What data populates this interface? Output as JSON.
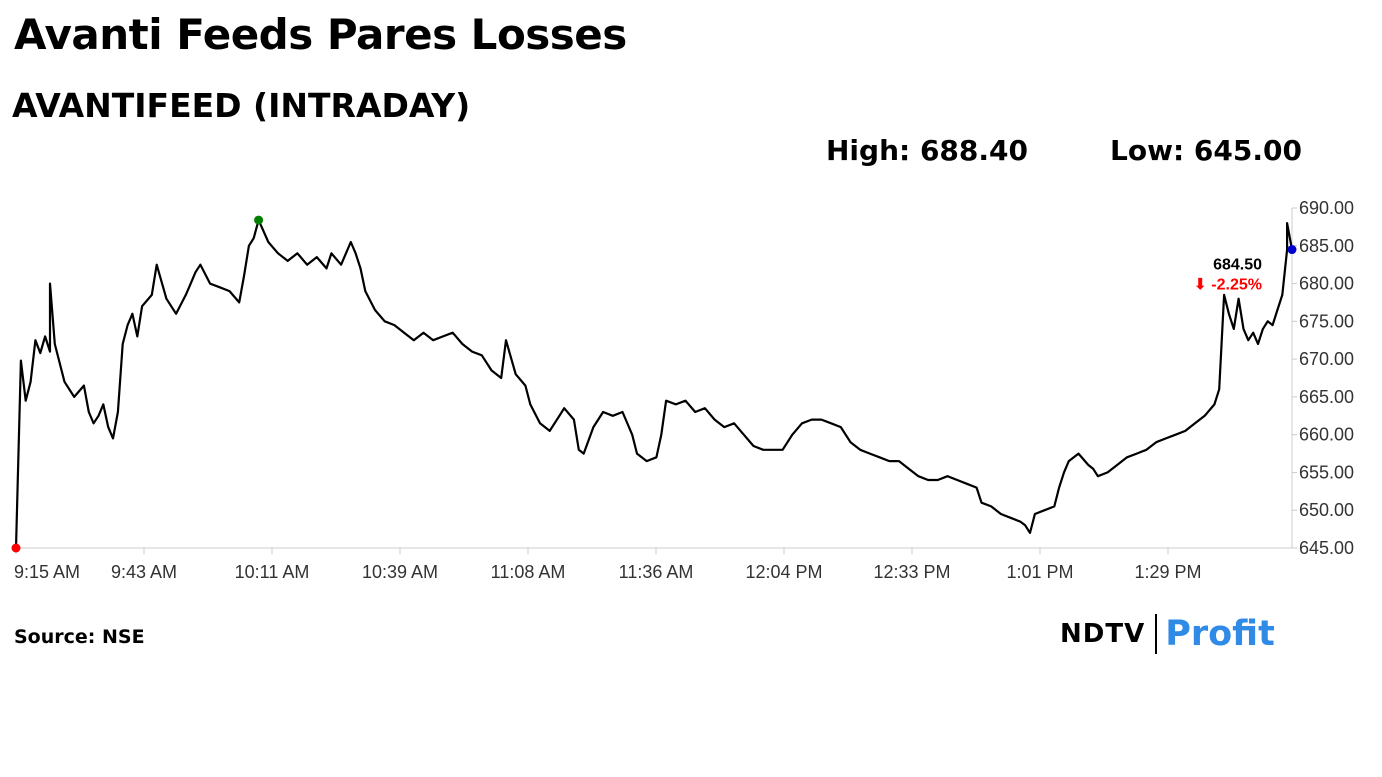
{
  "title": "Avanti Feeds Pares Losses",
  "subtitle": "AVANTIFEED (INTRADAY)",
  "stats": {
    "high": "High: 688.40",
    "low": "Low: 645.00"
  },
  "source": "Source: NSE",
  "brand": {
    "ndtv": "NDTV",
    "profit": "Profit",
    "accent": "#2f8be6"
  },
  "chart_data": {
    "type": "line",
    "title": "AVANTIFEED (INTRADAY)",
    "xlabel": "",
    "ylabel": "",
    "ylim": [
      645,
      690
    ],
    "yticks": [
      "690.00",
      "685.00",
      "680.00",
      "675.00",
      "670.00",
      "665.00",
      "660.00",
      "655.00",
      "650.00",
      "645.00"
    ],
    "xticks": [
      "9:15 AM",
      "9:43 AM",
      "10:11 AM",
      "10:39 AM",
      "11:08 AM",
      "11:36 AM",
      "12:04 PM",
      "12:33 PM",
      "1:01 PM",
      "1:29 PM"
    ],
    "grid": false,
    "series": [
      {
        "color": "#000000",
        "points": [
          [
            "9:15",
            645.0
          ],
          [
            "9:16",
            669.8
          ],
          [
            "9:17",
            664.5
          ],
          [
            "9:18",
            667.0
          ],
          [
            "9:19",
            672.5
          ],
          [
            "9:20",
            670.8
          ],
          [
            "9:21",
            673.0
          ],
          [
            "9:22",
            671.0
          ],
          [
            "9:22",
            680.0
          ],
          [
            "9:23",
            672.0
          ],
          [
            "9:25",
            667.0
          ],
          [
            "9:27",
            665.0
          ],
          [
            "9:29",
            666.5
          ],
          [
            "9:30",
            663.0
          ],
          [
            "9:31",
            661.5
          ],
          [
            "9:32",
            662.5
          ],
          [
            "9:33",
            664.0
          ],
          [
            "9:34",
            661.0
          ],
          [
            "9:35",
            659.5
          ],
          [
            "9:36",
            663.0
          ],
          [
            "9:37",
            672.0
          ],
          [
            "9:38",
            674.5
          ],
          [
            "9:39",
            676.0
          ],
          [
            "9:40",
            673.0
          ],
          [
            "9:41",
            677.0
          ],
          [
            "9:43",
            678.5
          ],
          [
            "9:44",
            682.5
          ],
          [
            "9:46",
            678.0
          ],
          [
            "9:48",
            676.0
          ],
          [
            "9:50",
            678.5
          ],
          [
            "9:51",
            680.0
          ],
          [
            "9:52",
            681.5
          ],
          [
            "9:53",
            682.5
          ],
          [
            "9:55",
            680.0
          ],
          [
            "9:57",
            679.5
          ],
          [
            "9:59",
            679.0
          ],
          [
            "10:01",
            677.5
          ],
          [
            "10:02",
            681.0
          ],
          [
            "10:03",
            685.0
          ],
          [
            "10:04",
            686.0
          ],
          [
            "10:05",
            688.4
          ],
          [
            "10:07",
            685.5
          ],
          [
            "10:09",
            684.0
          ],
          [
            "10:11",
            683.0
          ],
          [
            "10:13",
            684.0
          ],
          [
            "10:15",
            682.5
          ],
          [
            "10:17",
            683.5
          ],
          [
            "10:19",
            682.0
          ],
          [
            "10:20",
            684.0
          ],
          [
            "10:22",
            682.5
          ],
          [
            "10:24",
            685.5
          ],
          [
            "10:25",
            684.0
          ],
          [
            "10:26",
            682.0
          ],
          [
            "10:27",
            679.0
          ],
          [
            "10:29",
            676.5
          ],
          [
            "10:31",
            675.0
          ],
          [
            "10:33",
            674.5
          ],
          [
            "10:35",
            673.5
          ],
          [
            "10:37",
            672.5
          ],
          [
            "10:39",
            673.5
          ],
          [
            "10:41",
            672.5
          ],
          [
            "10:43",
            673.0
          ],
          [
            "10:45",
            673.5
          ],
          [
            "10:47",
            672.0
          ],
          [
            "10:49",
            671.0
          ],
          [
            "10:51",
            670.5
          ],
          [
            "10:53",
            668.5
          ],
          [
            "10:55",
            667.5
          ],
          [
            "10:56",
            672.5
          ],
          [
            "10:58",
            668.0
          ],
          [
            "11:00",
            666.5
          ],
          [
            "11:01",
            664.0
          ],
          [
            "11:03",
            661.5
          ],
          [
            "11:05",
            660.5
          ],
          [
            "11:07",
            662.5
          ],
          [
            "11:08",
            663.5
          ],
          [
            "11:10",
            662.0
          ],
          [
            "11:11",
            658.0
          ],
          [
            "11:12",
            657.5
          ],
          [
            "11:14",
            661.0
          ],
          [
            "11:16",
            663.0
          ],
          [
            "11:18",
            662.5
          ],
          [
            "11:20",
            663.0
          ],
          [
            "11:22",
            660.0
          ],
          [
            "11:23",
            657.5
          ],
          [
            "11:25",
            656.5
          ],
          [
            "11:27",
            657.0
          ],
          [
            "11:28",
            660.0
          ],
          [
            "11:29",
            664.5
          ],
          [
            "11:31",
            664.0
          ],
          [
            "11:33",
            664.5
          ],
          [
            "11:35",
            663.0
          ],
          [
            "11:37",
            663.5
          ],
          [
            "11:39",
            662.0
          ],
          [
            "11:41",
            661.0
          ],
          [
            "11:43",
            661.5
          ],
          [
            "11:45",
            660.0
          ],
          [
            "11:47",
            658.5
          ],
          [
            "11:49",
            658.0
          ],
          [
            "11:51",
            658.0
          ],
          [
            "11:53",
            658.0
          ],
          [
            "11:55",
            660.0
          ],
          [
            "11:57",
            661.5
          ],
          [
            "11:59",
            662.0
          ],
          [
            "12:01",
            662.0
          ],
          [
            "12:03",
            661.5
          ],
          [
            "12:05",
            661.0
          ],
          [
            "12:07",
            659.0
          ],
          [
            "12:09",
            658.0
          ],
          [
            "12:11",
            657.5
          ],
          [
            "12:13",
            657.0
          ],
          [
            "12:15",
            656.5
          ],
          [
            "12:17",
            656.5
          ],
          [
            "12:19",
            655.5
          ],
          [
            "12:21",
            654.5
          ],
          [
            "12:23",
            654.0
          ],
          [
            "12:25",
            654.0
          ],
          [
            "12:27",
            654.5
          ],
          [
            "12:29",
            654.0
          ],
          [
            "12:31",
            653.5
          ],
          [
            "12:33",
            653.0
          ],
          [
            "12:34",
            651.0
          ],
          [
            "12:36",
            650.5
          ],
          [
            "12:38",
            649.5
          ],
          [
            "12:40",
            649.0
          ],
          [
            "12:42",
            648.5
          ],
          [
            "12:43",
            648.0
          ],
          [
            "12:44",
            647.0
          ],
          [
            "12:45",
            649.5
          ],
          [
            "12:47",
            650.0
          ],
          [
            "12:49",
            650.5
          ],
          [
            "12:50",
            653.0
          ],
          [
            "12:51",
            655.0
          ],
          [
            "12:52",
            656.5
          ],
          [
            "12:54",
            657.5
          ],
          [
            "12:56",
            656.0
          ],
          [
            "12:57",
            655.5
          ],
          [
            "12:58",
            654.5
          ],
          [
            "13:00",
            655.0
          ],
          [
            "13:02",
            656.0
          ],
          [
            "13:04",
            657.0
          ],
          [
            "13:06",
            657.5
          ],
          [
            "13:08",
            658.0
          ],
          [
            "13:10",
            659.0
          ],
          [
            "13:12",
            659.5
          ],
          [
            "13:14",
            660.0
          ],
          [
            "13:16",
            660.5
          ],
          [
            "13:18",
            661.5
          ],
          [
            "13:20",
            662.5
          ],
          [
            "13:22",
            664.0
          ],
          [
            "13:23",
            666.0
          ],
          [
            "13:24",
            678.5
          ],
          [
            "13:25",
            676.0
          ],
          [
            "13:26",
            674.0
          ],
          [
            "13:27",
            678.0
          ],
          [
            "13:28",
            674.0
          ],
          [
            "13:29",
            672.5
          ],
          [
            "13:30",
            673.5
          ],
          [
            "13:31",
            672.0
          ],
          [
            "13:32",
            674.0
          ],
          [
            "13:33",
            675.0
          ],
          [
            "13:34",
            674.5
          ],
          [
            "13:35",
            676.5
          ],
          [
            "13:36",
            678.5
          ],
          [
            "13:37",
            684.5
          ],
          [
            "13:37",
            688.0
          ],
          [
            "13:38",
            684.5
          ]
        ]
      }
    ],
    "markers": [
      {
        "label": "open",
        "x": "9:15",
        "y": 645.0,
        "color": "#ff0000"
      },
      {
        "label": "high",
        "x": "10:05",
        "y": 688.4,
        "color": "#008000"
      },
      {
        "label": "last",
        "x": "13:38",
        "y": 684.5,
        "color": "#0000cc"
      }
    ],
    "last_price": "684.50",
    "change": "-2.25%",
    "change_color": "#ff0000"
  }
}
